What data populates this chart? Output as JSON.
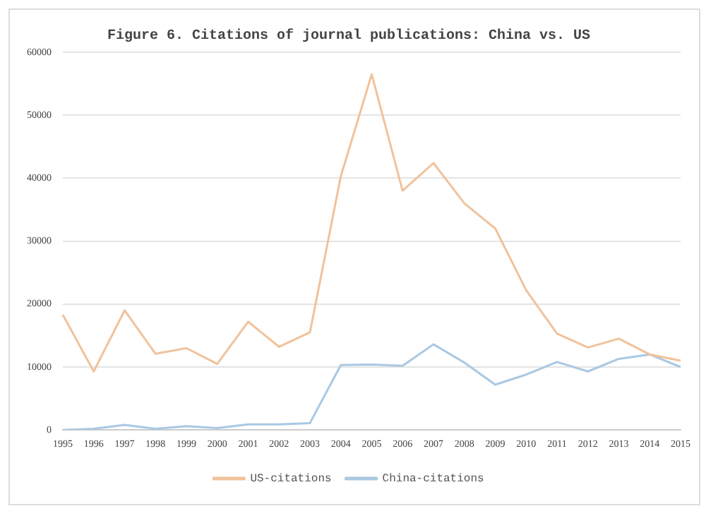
{
  "chart_data": {
    "type": "line",
    "title": "Figure 6. Citations of journal publications: China vs. US",
    "categories": [
      "1995",
      "1996",
      "1997",
      "1998",
      "1999",
      "2000",
      "2001",
      "2002",
      "2003",
      "2004",
      "2005",
      "2006",
      "2007",
      "2008",
      "2009",
      "2010",
      "2011",
      "2012",
      "2013",
      "2014",
      "2015"
    ],
    "series": [
      {
        "name": "US-citations",
        "color": "#f0c29c",
        "values": [
          18300,
          9300,
          19000,
          12100,
          13000,
          10500,
          17200,
          13200,
          15500,
          40300,
          56500,
          38000,
          42400,
          36000,
          32000,
          22200,
          15300,
          13100,
          14500,
          12000,
          11000
        ]
      },
      {
        "name": "China-citations",
        "color": "#a9c8e2",
        "values": [
          0,
          200,
          800,
          200,
          600,
          300,
          900,
          900,
          1100,
          10300,
          10400,
          10200,
          13600,
          10700,
          7200,
          8800,
          10800,
          9300,
          11300,
          12000,
          10000
        ]
      }
    ],
    "ylim": [
      0,
      60000
    ],
    "yticks": [
      0,
      10000,
      20000,
      30000,
      40000,
      50000,
      60000
    ],
    "grid": "y",
    "legend": "bottom",
    "marker": "none",
    "line_style": "solid"
  }
}
